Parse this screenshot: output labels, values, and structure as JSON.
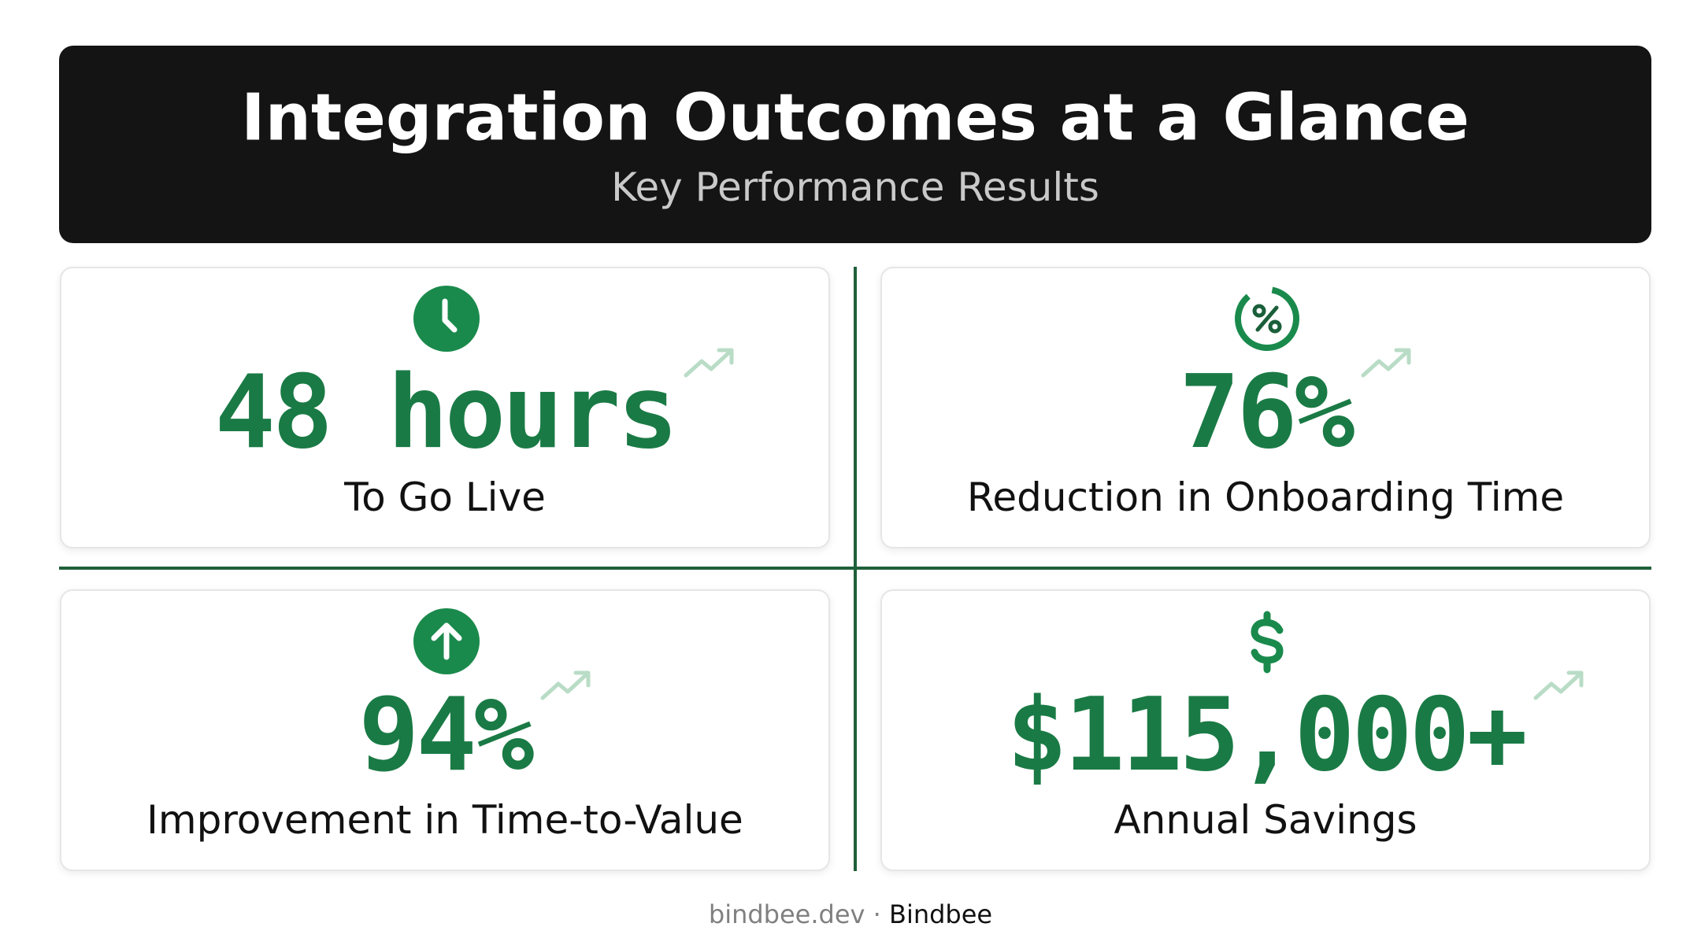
{
  "header": {
    "title": "Integration Outcomes at a Glance",
    "subtitle": "Key Performance Results"
  },
  "cards": [
    {
      "value": "48 hours",
      "label": "To Go Live"
    },
    {
      "value": "76%",
      "label": "Reduction in Onboarding Time"
    },
    {
      "value": "94%",
      "label": "Improvement in Time-to-Value"
    },
    {
      "value": "$115,000+",
      "label": "Annual Savings"
    }
  ],
  "footer": {
    "site": "bindbee.dev",
    "separator": "·",
    "brand": "Bindbee"
  }
}
